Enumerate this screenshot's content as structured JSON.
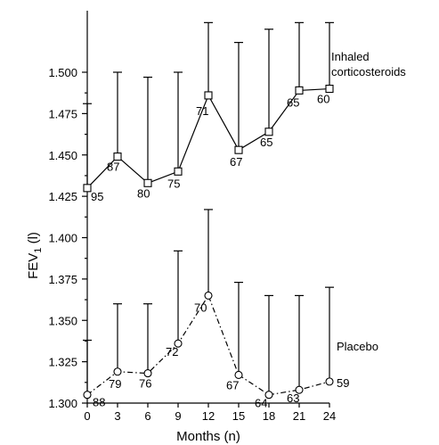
{
  "chart_data": {
    "type": "line",
    "xlabel": "Months (n)",
    "ylabel_main": "FEV",
    "ylabel_sub": "1",
    "ylabel_unit": " (l)",
    "x_ticks": [
      "0",
      "3",
      "6",
      "9",
      "12",
      "15",
      "18",
      "21",
      "24"
    ],
    "y_ticks": [
      "1.300",
      "1.325",
      "1.350",
      "1.375",
      "1.400",
      "1.425",
      "1.450",
      "1.475",
      "1.500"
    ],
    "x": [
      0,
      3,
      6,
      9,
      12,
      15,
      18,
      21,
      24
    ],
    "ylim": [
      1.3,
      1.5
    ],
    "xlim": [
      0,
      24
    ],
    "grid": false,
    "series": [
      {
        "name_lines": [
          "Inhaled",
          "corticosteroids"
        ],
        "marker": "square",
        "line_style": "solid",
        "values": [
          1.43,
          1.449,
          1.433,
          1.44,
          1.486,
          1.453,
          1.464,
          1.489,
          1.49
        ],
        "error_upper": [
          1.481,
          1.5,
          1.497,
          1.5,
          1.53,
          1.518,
          1.526,
          1.53,
          1.53
        ],
        "n": [
          "95",
          "87",
          "80",
          "75",
          "71",
          "67",
          "65",
          "65",
          "60"
        ]
      },
      {
        "name_lines": [
          "Placebo"
        ],
        "marker": "circle",
        "line_style": "dash-dot",
        "values": [
          1.305,
          1.319,
          1.318,
          1.336,
          1.365,
          1.317,
          1.305,
          1.308,
          1.313
        ],
        "error_upper": [
          1.338,
          1.36,
          1.36,
          1.392,
          1.417,
          1.373,
          1.365,
          1.365,
          1.37
        ],
        "n": [
          "88",
          "79",
          "76",
          "72",
          "70",
          "67",
          "64",
          "63",
          "59"
        ]
      }
    ]
  }
}
